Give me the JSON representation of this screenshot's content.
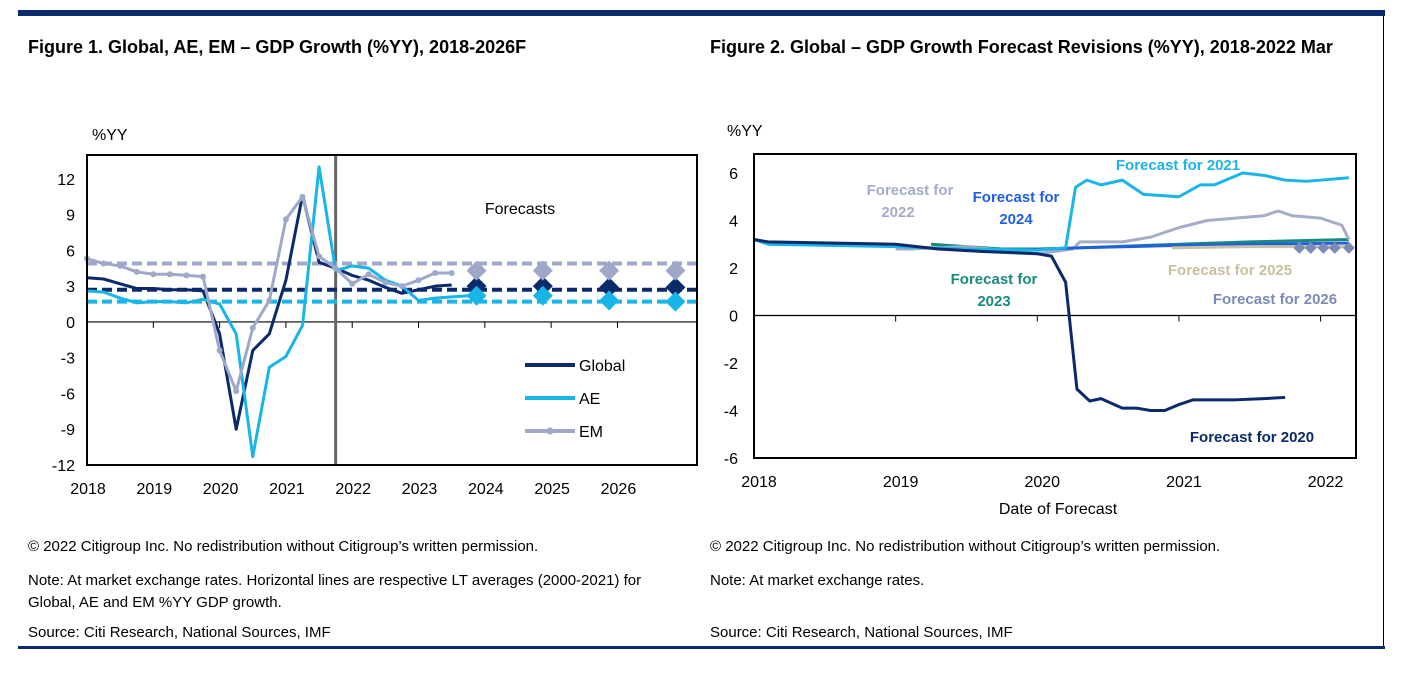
{
  "colors": {
    "frame": "#0b2a6b"
  },
  "fig1": {
    "title": "Figure 1. Global, AE, EM – GDP Growth (%YY), 2018-2026F",
    "copyright": "© 2022 Citigroup Inc. No redistribution without Citigroup’s written permission.",
    "note": "Note: At market exchange rates. Horizontal lines are respective LT averages (2000-2021) for Global, AE and EM %YY GDP growth.",
    "source": "Source: Citi Research, National Sources, IMF"
  },
  "fig2": {
    "title": "Figure 2. Global – GDP Growth Forecast Revisions (%YY), 2018-2022 Mar",
    "copyright": "© 2022 Citigroup Inc. No redistribution without Citigroup’s written permission.",
    "note": "Note: At market exchange rates.",
    "source": "Source: Citi Research, National Sources, IMF"
  },
  "chart_data": [
    {
      "type": "line",
      "ylabel": "%YY",
      "ylim": [
        -12,
        14
      ],
      "xlim": [
        2018,
        2027.2
      ],
      "yticks": [
        12,
        9,
        6,
        3,
        0,
        -3,
        -6,
        -9,
        -12
      ],
      "xticks": [
        "2018",
        "2019",
        "2020",
        "2021",
        "2022",
        "2023",
        "2024",
        "2025",
        "2026"
      ],
      "annotation": "Forecasts",
      "forecast_divider": 2021.75,
      "legend": "right",
      "series": [
        {
          "name": "Global",
          "color": "#0b2a6b",
          "x_start": 2018,
          "step": 0.25,
          "values": [
            3.7,
            3.6,
            3.2,
            2.8,
            2.8,
            2.7,
            2.7,
            2.6,
            -1.0,
            -9.0,
            -2.4,
            -1.0,
            3.5,
            10.6,
            5.0,
            4.5,
            3.9,
            3.5,
            2.9,
            2.4,
            2.7,
            3.0,
            3.1
          ],
          "forecast_x": [
            2023.875,
            2024.875,
            2025.875,
            2026.875
          ],
          "forecast": [
            3.0,
            3.0,
            2.9,
            2.9
          ],
          "lt_average": 2.7
        },
        {
          "name": "AE",
          "color": "#19b5e8",
          "x_start": 2018,
          "step": 0.25,
          "values": [
            2.6,
            2.5,
            2.0,
            1.6,
            1.7,
            1.7,
            1.6,
            1.9,
            1.5,
            -1.0,
            -11.3,
            -3.8,
            -2.9,
            -0.3,
            13.0,
            4.3,
            4.7,
            4.5,
            3.5,
            3.0,
            1.8,
            2.0,
            2.1,
            2.2
          ],
          "x_start_note": "",
          "forecast_x": [
            2023.875,
            2024.875,
            2025.875,
            2026.875
          ],
          "forecast": [
            2.2,
            2.2,
            1.8,
            1.7
          ],
          "lt_average": 1.7
        },
        {
          "name": "EM",
          "color": "#9ea8c8",
          "x_start": 2018,
          "step": 0.25,
          "values": [
            5.3,
            4.9,
            4.7,
            4.2,
            4.0,
            4.0,
            3.9,
            3.8,
            -2.4,
            -5.8,
            -0.5,
            1.8,
            8.6,
            10.5,
            5.5,
            4.5,
            3.2,
            4.0,
            3.3,
            3.0,
            3.5,
            4.1,
            4.1
          ],
          "forecast_x": [
            2023.875,
            2024.875,
            2025.875,
            2026.875
          ],
          "forecast": [
            4.3,
            4.3,
            4.3,
            4.3
          ],
          "lt_average": 4.9
        }
      ]
    },
    {
      "type": "line",
      "ylabel": "%YY",
      "xlabel": "Date of Forecast",
      "ylim": [
        -6,
        6.8
      ],
      "xlim": [
        2018,
        2022.25
      ],
      "yticks": [
        6,
        4,
        2,
        0,
        -2,
        -4,
        -6
      ],
      "xticks": [
        "2018",
        "2019",
        "2020",
        "2021",
        "2022"
      ],
      "series": [
        {
          "name": "Forecast for 2020",
          "color": "#0b2a6b",
          "points": [
            [
              2018,
              3.2
            ],
            [
              2018.1,
              3.1
            ],
            [
              2019,
              3.0
            ],
            [
              2019.3,
              2.8
            ],
            [
              2019.6,
              2.7
            ],
            [
              2020,
              2.6
            ],
            [
              2020.1,
              2.5
            ],
            [
              2020.2,
              1.4
            ],
            [
              2020.28,
              -3.1
            ],
            [
              2020.37,
              -3.6
            ],
            [
              2020.45,
              -3.5
            ],
            [
              2020.6,
              -3.9
            ],
            [
              2020.7,
              -3.9
            ],
            [
              2020.8,
              -4.0
            ],
            [
              2020.9,
              -4.0
            ],
            [
              2021,
              -3.75
            ],
            [
              2021.1,
              -3.55
            ],
            [
              2021.4,
              -3.55
            ],
            [
              2021.6,
              -3.5
            ],
            [
              2021.75,
              -3.45
            ]
          ]
        },
        {
          "name": "Forecast for 2021",
          "color": "#19b5e8",
          "points": [
            [
              2018,
              3.2
            ],
            [
              2018.1,
              3.0
            ],
            [
              2019,
              2.9
            ],
            [
              2019.5,
              2.8
            ],
            [
              2020,
              2.75
            ],
            [
              2020.2,
              2.85
            ],
            [
              2020.27,
              5.4
            ],
            [
              2020.35,
              5.7
            ],
            [
              2020.45,
              5.5
            ],
            [
              2020.6,
              5.7
            ],
            [
              2020.75,
              5.1
            ],
            [
              2021,
              5.0
            ],
            [
              2021.15,
              5.5
            ],
            [
              2021.25,
              5.5
            ],
            [
              2021.45,
              6.0
            ],
            [
              2021.6,
              5.9
            ],
            [
              2021.75,
              5.7
            ],
            [
              2021.9,
              5.65
            ],
            [
              2022.2,
              5.8
            ]
          ]
        },
        {
          "name": "Forecast for 2022",
          "color": "#a4acc8",
          "points": [
            [
              2019,
              2.8
            ],
            [
              2019.1,
              2.8
            ],
            [
              2019.5,
              2.9
            ],
            [
              2020,
              2.6
            ],
            [
              2020.25,
              2.8
            ],
            [
              2020.3,
              3.1
            ],
            [
              2020.6,
              3.1
            ],
            [
              2020.8,
              3.3
            ],
            [
              2021,
              3.7
            ],
            [
              2021.2,
              4.0
            ],
            [
              2021.4,
              4.1
            ],
            [
              2021.6,
              4.2
            ],
            [
              2021.7,
              4.4
            ],
            [
              2021.8,
              4.2
            ],
            [
              2022,
              4.1
            ],
            [
              2022.15,
              3.8
            ],
            [
              2022.2,
              3.2
            ]
          ]
        },
        {
          "name": "Forecast for 2023",
          "color": "#1a8a80",
          "points": [
            [
              2019.25,
              3.0
            ],
            [
              2019.5,
              2.9
            ],
            [
              2019.75,
              2.8
            ],
            [
              2020,
              2.8
            ],
            [
              2020.3,
              2.85
            ],
            [
              2021,
              3.0
            ],
            [
              2021.5,
              3.1
            ],
            [
              2022.2,
              3.2
            ]
          ]
        },
        {
          "name": "Forecast for 2024",
          "color": "#1f5fe0",
          "points": [
            [
              2019.9,
              2.75
            ],
            [
              2020.3,
              2.85
            ],
            [
              2021,
              2.95
            ],
            [
              2022.2,
              3.05
            ]
          ]
        },
        {
          "name": "Forecast for 2025",
          "color": "#c9c0a0",
          "points": [
            [
              2020.95,
              2.85
            ],
            [
              2021.5,
              2.9
            ],
            [
              2022.2,
              2.9
            ]
          ]
        },
        {
          "name": "Forecast for 2026",
          "color": "#7b8bb5",
          "points": [
            [
              2021.85,
              2.85
            ],
            [
              2021.93,
              2.85
            ],
            [
              2022.02,
              2.85
            ],
            [
              2022.1,
              2.85
            ],
            [
              2022.2,
              2.85
            ]
          ],
          "markers": "diamond"
        }
      ]
    }
  ]
}
